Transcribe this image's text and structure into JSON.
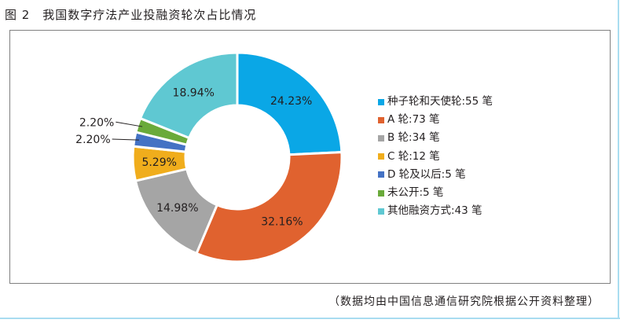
{
  "title": "图 2　我国数字疗法产业投融资轮次占比情况",
  "source": "（数据均由中国信息通信研究院根据公开资料整理）",
  "chart_data": {
    "type": "pie",
    "donut": true,
    "title": "我国数字疗法产业投融资轮次占比情况",
    "legend_position": "right",
    "start": "top, clockwise",
    "slices": [
      {
        "name": "种子轮和天使轮",
        "count": 55,
        "unit": "笔",
        "legend": "种子轮和天使轮:55 笔",
        "percent": 24.23,
        "label": "24.23%",
        "color": "#0aa7e6"
      },
      {
        "name": "A 轮",
        "count": 73,
        "unit": "笔",
        "legend": "A 轮:73 笔",
        "percent": 32.16,
        "label": "32.16%",
        "color": "#e0622f"
      },
      {
        "name": "B 轮",
        "count": 34,
        "unit": "笔",
        "legend": "B 轮:34 笔",
        "percent": 14.98,
        "label": "14.98%",
        "color": "#a5a5a5"
      },
      {
        "name": "C 轮",
        "count": 12,
        "unit": "笔",
        "legend": "C 轮:12 笔",
        "percent": 5.29,
        "label": "5.29%",
        "color": "#f0ad1c"
      },
      {
        "name": "D 轮及以后",
        "count": 5,
        "unit": "笔",
        "legend": "D 轮及以后:5 笔",
        "percent": 2.2,
        "label": "2.20%",
        "color": "#4472c4"
      },
      {
        "name": "未公开",
        "count": 5,
        "unit": "笔",
        "legend": "未公开:5 笔",
        "percent": 2.2,
        "label": "2.20%",
        "color": "#6aaa3a"
      },
      {
        "name": "其他融资方式",
        "count": 43,
        "unit": "笔",
        "legend": "其他融资方式:43 笔",
        "percent": 18.94,
        "label": "18.94%",
        "color": "#5fc8d2"
      }
    ]
  }
}
